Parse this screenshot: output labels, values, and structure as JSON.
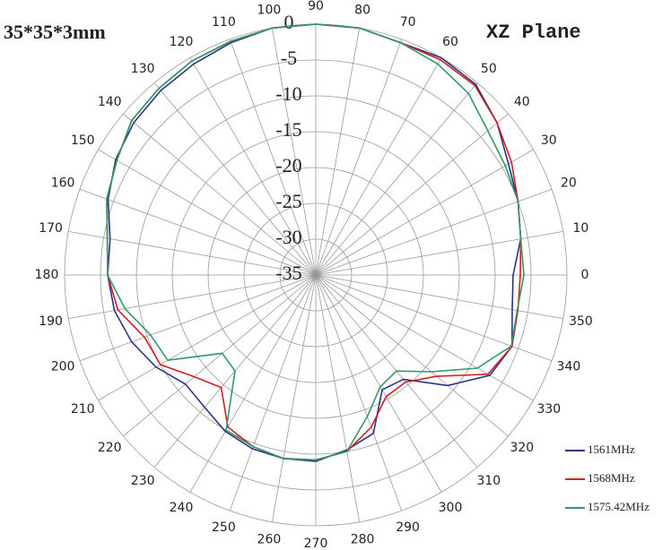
{
  "chart_data": {
    "type": "polar",
    "title": "35*35*3mm",
    "subtitle": "XZ Plane",
    "rlim": [
      -35,
      0
    ],
    "rticks": [
      -35,
      -30,
      -25,
      -20,
      -15,
      -10,
      -5,
      0
    ],
    "thetaticks": [
      0,
      10,
      20,
      30,
      40,
      50,
      60,
      70,
      80,
      90,
      100,
      110,
      120,
      130,
      140,
      150,
      160,
      170,
      180,
      190,
      200,
      210,
      220,
      230,
      240,
      250,
      260,
      270,
      280,
      290,
      300,
      310,
      320,
      330,
      340,
      350
    ],
    "grid": true,
    "x": [
      0,
      10,
      20,
      30,
      40,
      50,
      60,
      70,
      80,
      90,
      100,
      110,
      120,
      130,
      140,
      150,
      160,
      170,
      180,
      190,
      200,
      210,
      220,
      230,
      240,
      250,
      260,
      270,
      280,
      290,
      300,
      310,
      320,
      330,
      340,
      350
    ],
    "series": [
      {
        "name": "1561MHz",
        "color": "#2b3585",
        "values": [
          -7.5,
          -6,
          -5,
          -4,
          -2,
          -0.3,
          0,
          -0.5,
          0,
          0,
          0,
          -0.5,
          -1,
          -1.4,
          -1.9,
          -2.8,
          -4.2,
          -5.9,
          -6,
          -6.5,
          -7.7,
          -9.3,
          -11.3,
          -10.9,
          -9.8,
          -9.2,
          -9,
          -9,
          -10.2,
          -11.5,
          -16.5,
          -16,
          -11,
          -7,
          -5.9,
          -7.2
        ]
      },
      {
        "name": "1568MHz",
        "color": "#d0201f",
        "values": [
          -6.5,
          -6,
          -5,
          -3.5,
          -2,
          -0.5,
          -0.3,
          -0.5,
          0,
          0,
          0,
          -0.3,
          -0.5,
          -1,
          -1.5,
          -3,
          -4,
          -5.5,
          -6,
          -7,
          -9.6,
          -10,
          -12.9,
          -14.5,
          -10.5,
          -9.5,
          -9,
          -9.2,
          -10,
          -12.4,
          -15.4,
          -15.5,
          -13,
          -7.3,
          -5.9,
          -6.4
        ]
      },
      {
        "name": "1575.42MHz",
        "color": "#2e9a6c",
        "values": [
          -6,
          -6,
          -5,
          -4.5,
          -3.7,
          -1.9,
          -1,
          -0.5,
          0,
          0,
          0,
          -0.3,
          -0.5,
          -1,
          -1.5,
          -3,
          -4,
          -5.5,
          -6,
          -8,
          -10.5,
          -11.2,
          -18,
          -17.5,
          -10,
          -9.5,
          -9,
          -9.2,
          -10,
          -14,
          -17,
          -17.5,
          -14,
          -9,
          -6,
          -6.5
        ]
      }
    ]
  }
}
